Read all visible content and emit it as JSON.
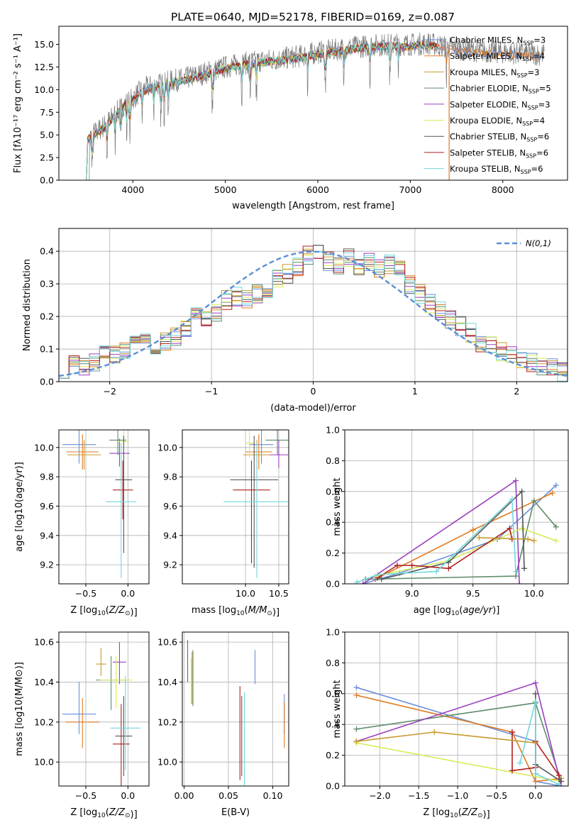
{
  "title": "PLATE=0640, MJD=52178, FIBERID=0169, z=0.087",
  "models": [
    {
      "name": "Chabrier MILES",
      "nssp": "3",
      "color": "#6a8fd8"
    },
    {
      "name": "Salpeter MILES",
      "nssp": "4",
      "color": "#e07b22"
    },
    {
      "name": "Kroupa MILES",
      "nssp": "3",
      "color": "#c89a2e"
    },
    {
      "name": "Chabrier ELODIE",
      "nssp": "5",
      "color": "#5e8c6a"
    },
    {
      "name": "Salpeter ELODIE",
      "nssp": "3",
      "color": "#9b3fc0"
    },
    {
      "name": "Kroupa ELODIE",
      "nssp": "4",
      "color": "#d9ea5a"
    },
    {
      "name": "Chabrier STELIB",
      "nssp": "6",
      "color": "#555555"
    },
    {
      "name": "Salpeter STELIB",
      "nssp": "6",
      "color": "#b01f1f"
    },
    {
      "name": "Kroupa STELIB",
      "nssp": "6",
      "color": "#72d8dc"
    }
  ],
  "legend_nssp_prefix": "N",
  "legend_nssp_sub": "SSP",
  "chart_data": [
    {
      "id": "spectrum",
      "type": "line",
      "xlabel": "wavelength [Angstrom, rest frame]",
      "ylabel": "Flux [fλ10⁻¹⁷ erg cm⁻² s⁻¹ A⁻¹]",
      "xlim": [
        3200,
        8700
      ],
      "ylim": [
        0,
        17
      ],
      "xticks": [
        4000,
        5000,
        6000,
        7000,
        8000
      ],
      "yticks": [
        0.0,
        2.5,
        5.0,
        7.5,
        10.0,
        12.5,
        15.0
      ],
      "ytick_labels": [
        "0.0",
        "2.5",
        "5.0",
        "7.5",
        "10.0",
        "12.5",
        "15.0"
      ],
      "legend_position": "right",
      "continuum": {
        "x": [
          3500,
          3600,
          3700,
          3800,
          3900,
          4000,
          4100,
          4200,
          4300,
          4400,
          4600,
          4800,
          5000,
          5200,
          5400,
          5600,
          5800,
          6000,
          6200,
          6400,
          6600,
          6800,
          7000,
          7200,
          7400,
          7600,
          7800,
          8000,
          8200,
          8400
        ],
        "y": [
          4.6,
          5.3,
          6.1,
          7.2,
          8.3,
          9.0,
          10.0,
          10.4,
          10.6,
          10.9,
          11.3,
          11.9,
          12.5,
          12.9,
          13.2,
          13.4,
          13.7,
          14.1,
          14.4,
          14.7,
          14.9,
          15.0,
          15.0,
          15.1,
          14.7,
          14.4,
          14.2,
          14.1,
          14.0,
          13.9
        ]
      },
      "absorption_lines": [
        3560,
        3720,
        3810,
        3870,
        3934,
        3968,
        4102,
        4226,
        4304,
        4340,
        4384,
        4861,
        5175,
        5270,
        5335,
        5890,
        6080,
        6280,
        6563,
        6780,
        6870,
        7390
      ]
    },
    {
      "id": "residuals",
      "type": "bar",
      "xlabel": "(data-model)/error",
      "ylabel": "Normed distribution",
      "xlim": [
        -2.5,
        2.5
      ],
      "ylim": [
        0,
        0.47
      ],
      "xticks": [
        -2,
        -1,
        0,
        1,
        2
      ],
      "xtick_labels": [
        "−2",
        "−1",
        "0",
        "1",
        "2"
      ],
      "yticks": [
        0.0,
        0.1,
        0.2,
        0.3,
        0.4
      ],
      "ytick_labels": [
        "0.0",
        "0.1",
        "0.2",
        "0.3",
        "0.4"
      ],
      "grid": true,
      "legend_position": "top-right",
      "gaussian_label": "N(0,1)",
      "bin_edges_start": -2.5,
      "bin_width": 0.1,
      "base_hist": [
        0.04,
        0.05,
        0.05,
        0.06,
        0.08,
        0.08,
        0.09,
        0.12,
        0.12,
        0.11,
        0.12,
        0.14,
        0.16,
        0.2,
        0.19,
        0.21,
        0.25,
        0.26,
        0.25,
        0.27,
        0.28,
        0.32,
        0.33,
        0.35,
        0.39,
        0.4,
        0.37,
        0.36,
        0.38,
        0.35,
        0.37,
        0.35,
        0.36,
        0.34,
        0.3,
        0.27,
        0.24,
        0.22,
        0.19,
        0.17,
        0.15,
        0.12,
        0.11,
        0.09,
        0.08,
        0.07,
        0.06,
        0.05,
        0.04,
        0.03
      ]
    },
    {
      "id": "Z_age",
      "type": "scatter",
      "xlabel": "Z [log10(Z/Z⊙)]",
      "ylabel": "age  [log10(age/yr)]",
      "xlim": [
        -0.82,
        0.25
      ],
      "ylim": [
        9.07,
        10.12
      ],
      "xticks": [
        -0.5,
        0.0
      ],
      "xtick_labels": [
        "−0.5",
        "0.0"
      ],
      "yticks": [
        9.2,
        9.4,
        9.6,
        9.8,
        10.0
      ],
      "ytick_labels": [
        "9.2",
        "9.4",
        "9.6",
        "9.8",
        "10.0"
      ],
      "grid": true,
      "points": [
        [
          -0.58,
          10.02,
          0.2,
          0.13,
          0.15
        ],
        [
          -0.54,
          9.97,
          0.19,
          0.12,
          0.12
        ],
        [
          -0.52,
          9.95,
          0.2,
          0.1,
          0.1
        ],
        [
          -0.12,
          10.05,
          0.1,
          0.1,
          0.12
        ],
        [
          -0.1,
          9.96,
          0.12,
          0.09,
          0.1
        ],
        [
          -0.05,
          10.04,
          0.06,
          0.1,
          0.1
        ],
        [
          -0.05,
          9.78,
          0.1,
          0.5,
          0.3
        ],
        [
          -0.06,
          9.71,
          0.12,
          0.2,
          0.2
        ],
        [
          -0.08,
          9.63,
          0.18,
          0.52,
          0.4
        ]
      ]
    },
    {
      "id": "mass_age",
      "type": "scatter",
      "xlabel": "mass [log10(M/M⊙)]",
      "xlim": [
        9.05,
        10.65
      ],
      "ylim": [
        9.07,
        10.12
      ],
      "xticks": [
        10.0,
        10.5
      ],
      "xtick_labels": [
        "10.0",
        "10.5"
      ],
      "yticks": [
        9.2,
        9.4,
        9.6,
        9.8,
        10.0
      ],
      "ytick_labels": [
        "9.2",
        "9.4",
        "9.6",
        "9.8",
        "10.0"
      ],
      "grid": true,
      "points": [
        [
          10.24,
          10.02,
          0.18,
          0.13,
          0.15
        ],
        [
          10.2,
          9.97,
          0.2,
          0.12,
          0.12
        ],
        [
          10.17,
          9.95,
          0.2,
          0.1,
          0.1
        ],
        [
          10.48,
          10.05,
          0.18,
          0.1,
          0.12
        ],
        [
          10.5,
          9.95,
          0.14,
          0.09,
          0.1
        ],
        [
          10.06,
          10.03,
          0.06,
          0.1,
          0.1
        ],
        [
          10.13,
          9.78,
          0.36,
          0.6,
          0.3
        ],
        [
          10.09,
          9.71,
          0.28,
          0.5,
          0.2
        ],
        [
          10.17,
          9.63,
          0.5,
          0.52,
          0.4
        ]
      ]
    },
    {
      "id": "age_weight",
      "type": "line",
      "xlabel": "age  [log10(age/yr)]",
      "ylabel": "mass weight",
      "xlim": [
        8.45,
        10.28
      ],
      "ylim": [
        0,
        1
      ],
      "xticks": [
        9.0,
        9.5,
        10.0
      ],
      "xtick_labels": [
        "9.0",
        "9.5",
        "10.0"
      ],
      "yticks": [
        0.0,
        0.2,
        0.4,
        0.6,
        0.8,
        1.0
      ],
      "ytick_labels": [
        "0.0",
        "0.2",
        "0.4",
        "0.6",
        "0.8",
        "1.0"
      ],
      "grid": true,
      "series": [
        {
          "model": 0,
          "x": [
            8.6,
            8.9,
            9.7,
            10.18
          ],
          "y": [
            0.0,
            0.07,
            0.29,
            0.64
          ]
        },
        {
          "model": 1,
          "x": [
            8.7,
            9.5,
            10.15
          ],
          "y": [
            0.03,
            0.35,
            0.59
          ]
        },
        {
          "model": 3,
          "x": [
            8.62,
            9.85,
            10.0,
            10.18
          ],
          "y": [
            0.03,
            0.05,
            0.54,
            0.37
          ]
        },
        {
          "model": 4,
          "x": [
            8.6,
            9.85,
            9.88
          ],
          "y": [
            0.0,
            0.67,
            0.0
          ]
        },
        {
          "model": 5,
          "x": [
            8.7,
            9.3,
            9.9,
            10.18
          ],
          "y": [
            0.05,
            0.15,
            0.36,
            0.28
          ]
        },
        {
          "model": 6,
          "x": [
            8.75,
            9.3,
            9.9,
            9.92
          ],
          "y": [
            0.03,
            0.14,
            0.6,
            0.1
          ]
        },
        {
          "model": 7,
          "x": [
            8.72,
            8.88,
            9.0,
            9.3,
            9.8,
            9.82
          ],
          "y": [
            0.04,
            0.12,
            0.12,
            0.1,
            0.36,
            0.29
          ]
        },
        {
          "model": 8,
          "x": [
            8.55,
            8.72,
            9.2,
            9.82,
            9.85
          ],
          "y": [
            0.01,
            0.06,
            0.08,
            0.55,
            0.08
          ]
        },
        {
          "model": 2,
          "x": [
            9.55,
            9.95,
            10.0
          ],
          "y": [
            0.3,
            0.29,
            0.28
          ]
        }
      ]
    },
    {
      "id": "Z_mass",
      "type": "scatter",
      "xlabel": "Z [log10(Z/Z⊙)]",
      "ylabel": "mass [log10(M/M⊙)]",
      "xlim": [
        -0.82,
        0.25
      ],
      "ylim": [
        9.88,
        10.65
      ],
      "xticks": [
        -0.5,
        0.0
      ],
      "xtick_labels": [
        "−0.5",
        "0.0"
      ],
      "yticks": [
        10.0,
        10.2,
        10.4,
        10.6
      ],
      "ytick_labels": [
        "10.0",
        "10.2",
        "10.4",
        "10.6"
      ],
      "grid": true,
      "points": [
        [
          -0.58,
          10.24,
          0.2,
          0.1,
          0.16
        ],
        [
          -0.54,
          10.2,
          0.2,
          0.13,
          0.12
        ],
        [
          -0.32,
          10.49,
          0.06,
          0.06,
          0.08
        ],
        [
          -0.2,
          10.41,
          0.18,
          0.15,
          0.12
        ],
        [
          -0.1,
          10.5,
          0.08,
          0.11,
          0.1
        ],
        [
          -0.14,
          10.41,
          0.19,
          0.14,
          0.12
        ],
        [
          -0.05,
          10.13,
          0.1,
          0.2,
          0.2
        ],
        [
          -0.08,
          10.09,
          0.1,
          0.25,
          0.2
        ],
        [
          -0.03,
          10.17,
          0.18,
          0.21,
          0.26
        ]
      ]
    },
    {
      "id": "ebv_mass",
      "type": "scatter",
      "xlabel": "E(B-V)",
      "xlim": [
        -0.002,
        0.118
      ],
      "ylim": [
        9.88,
        10.65
      ],
      "xticks": [
        0.0,
        0.05,
        0.1
      ],
      "xtick_labels": [
        "0.00",
        "0.05",
        "0.10"
      ],
      "yticks": [
        10.0,
        10.2,
        10.4,
        10.6
      ],
      "ytick_labels": [
        "10.0",
        "10.2",
        "10.4",
        "10.6"
      ],
      "grid": true,
      "points": [
        [
          0.113,
          10.24,
          0,
          0.1,
          0.1
        ],
        [
          0.113,
          10.2,
          0,
          0.13,
          0.1
        ],
        [
          0.009,
          10.45,
          0,
          0.16,
          0.1
        ],
        [
          0.01,
          10.42,
          0,
          0.14,
          0.14
        ],
        [
          0.004,
          10.5,
          0,
          0.1,
          0.11
        ],
        [
          0.008,
          10.42,
          0,
          0.13,
          0.1
        ],
        [
          0.065,
          10.13,
          0,
          0.2,
          0.2
        ],
        [
          0.063,
          10.15,
          0,
          0.24,
          0.23
        ],
        [
          0.068,
          10.1,
          0,
          0.25,
          0.25
        ],
        [
          0.08,
          10.48,
          0,
          0.09,
          0.08
        ]
      ]
    },
    {
      "id": "Z_weight",
      "type": "line",
      "xlabel": "Z [log10(Z/Z⊙)]",
      "ylabel": "mass weight",
      "xlim": [
        -2.45,
        0.42
      ],
      "ylim": [
        0,
        1
      ],
      "xticks": [
        -2.0,
        -1.5,
        -1.0,
        -0.5,
        0.0
      ],
      "xtick_labels": [
        "−2.0",
        "−1.5",
        "−1.0",
        "−0.5",
        "0.0"
      ],
      "yticks": [
        0.0,
        0.2,
        0.4,
        0.6,
        0.8,
        1.0
      ],
      "ytick_labels": [
        "0.0",
        "0.2",
        "0.4",
        "0.6",
        "0.8",
        "1.0"
      ],
      "grid": true,
      "series": [
        {
          "model": 0,
          "x": [
            -2.3,
            0.0,
            0.0,
            0.33
          ],
          "y": [
            0.64,
            0.29,
            0.03,
            0.0
          ]
        },
        {
          "model": 1,
          "x": [
            -2.3,
            -0.3,
            0.0,
            0.33
          ],
          "y": [
            0.59,
            0.35,
            0.03,
            0.05
          ]
        },
        {
          "model": 3,
          "x": [
            -2.3,
            0.0,
            0.33
          ],
          "y": [
            0.37,
            0.54,
            0.03
          ]
        },
        {
          "model": 4,
          "x": [
            -2.3,
            0.0,
            0.33
          ],
          "y": [
            0.29,
            0.67,
            0.0
          ]
        },
        {
          "model": 5,
          "x": [
            -2.3,
            0.33
          ],
          "y": [
            0.28,
            0.03
          ]
        },
        {
          "model": 6,
          "x": [
            0.0,
            0.0,
            0.33
          ],
          "y": [
            0.6,
            0.14,
            0.03
          ]
        },
        {
          "model": 7,
          "x": [
            -0.3,
            -0.3,
            0.0,
            0.0,
            0.3
          ],
          "y": [
            0.35,
            0.1,
            0.12,
            0.29,
            0.07
          ]
        },
        {
          "model": 8,
          "x": [
            -0.2,
            0.0,
            0.0,
            0.3
          ],
          "y": [
            0.15,
            0.55,
            0.08,
            0.01
          ]
        },
        {
          "model": 2,
          "x": [
            -2.3,
            -1.3,
            0.0
          ],
          "y": [
            0.29,
            0.35,
            0.28
          ]
        }
      ]
    }
  ]
}
